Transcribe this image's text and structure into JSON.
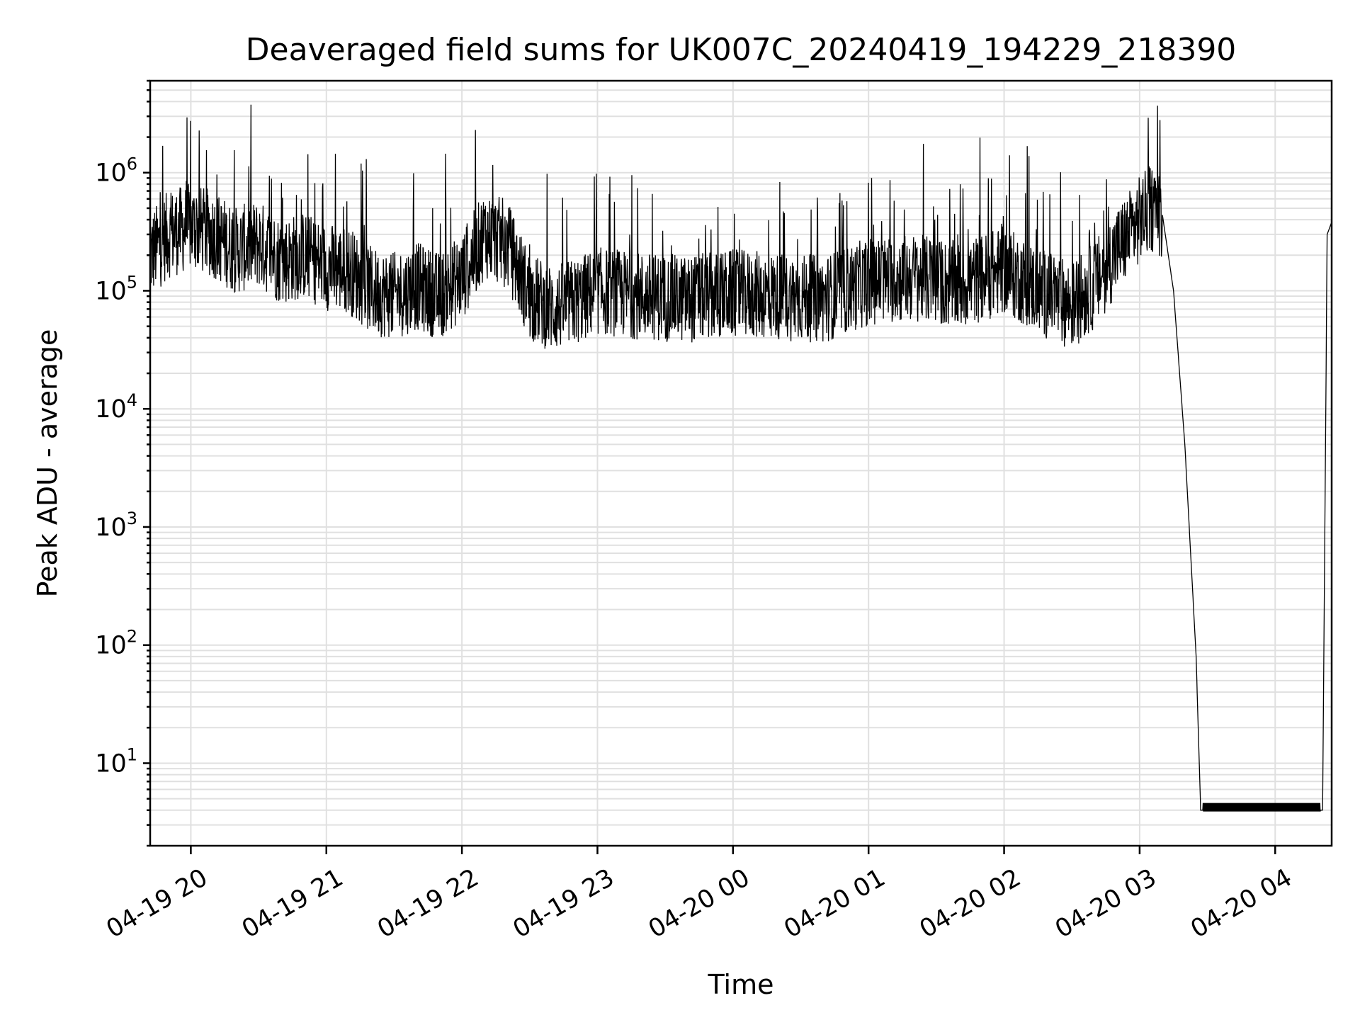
{
  "chart_data": {
    "type": "line",
    "title": "Deaveraged field sums for UK007C_20240419_194229_218390",
    "xlabel": "Time",
    "ylabel": "Peak ADU - average",
    "yscale": "log",
    "grid": true,
    "line_color": "#000000",
    "grid_color": "#e0e0e0",
    "xlim": [
      "2024-04-19 19:42",
      "2024-04-20 04:25"
    ],
    "ylim": [
      2,
      6000000
    ],
    "xticks": [
      {
        "value": "2024-04-19 20:00",
        "label": "04-19 20"
      },
      {
        "value": "2024-04-19 21:00",
        "label": "04-19 21"
      },
      {
        "value": "2024-04-19 22:00",
        "label": "04-19 22"
      },
      {
        "value": "2024-04-19 23:00",
        "label": "04-19 23"
      },
      {
        "value": "2024-04-20 00:00",
        "label": "04-20 00"
      },
      {
        "value": "2024-04-20 01:00",
        "label": "04-20 01"
      },
      {
        "value": "2024-04-20 02:00",
        "label": "04-20 02"
      },
      {
        "value": "2024-04-20 03:00",
        "label": "04-20 03"
      },
      {
        "value": "2024-04-20 04:00",
        "label": "04-20 04"
      }
    ],
    "yticks": [
      {
        "value": 10,
        "base": "10",
        "exp": "1"
      },
      {
        "value": 100,
        "base": "10",
        "exp": "2"
      },
      {
        "value": 1000,
        "base": "10",
        "exp": "3"
      },
      {
        "value": 10000,
        "base": "10",
        "exp": "4"
      },
      {
        "value": 100000,
        "base": "10",
        "exp": "5"
      },
      {
        "value": 1000000,
        "base": "10",
        "exp": "6"
      }
    ],
    "series": [
      {
        "x": [
          "2024-04-19 19:42",
          "2024-04-19 19:50",
          "2024-04-19 20:00",
          "2024-04-19 20:10",
          "2024-04-19 20:20",
          "2024-04-19 20:30",
          "2024-04-19 20:40",
          "2024-04-19 20:50",
          "2024-04-19 21:00",
          "2024-04-19 21:10",
          "2024-04-19 21:20",
          "2024-04-19 21:30",
          "2024-04-19 21:40",
          "2024-04-19 21:50",
          "2024-04-19 22:00",
          "2024-04-19 22:10",
          "2024-04-19 22:20",
          "2024-04-19 22:30",
          "2024-04-19 22:40",
          "2024-04-19 22:50",
          "2024-04-19 23:00",
          "2024-04-19 23:20",
          "2024-04-19 23:40",
          "2024-04-20 00:00",
          "2024-04-20 00:20",
          "2024-04-20 00:40",
          "2024-04-20 01:00",
          "2024-04-20 01:20",
          "2024-04-20 01:40",
          "2024-04-20 02:00",
          "2024-04-20 02:20",
          "2024-04-20 02:30",
          "2024-04-20 02:40",
          "2024-04-20 02:50",
          "2024-04-20 03:00",
          "2024-04-20 03:05",
          "2024-04-20 03:10",
          "2024-04-20 03:15",
          "2024-04-20 03:20",
          "2024-04-20 03:25",
          "2024-04-20 03:27",
          "2024-04-20 03:28",
          "2024-04-20 04:20",
          "2024-04-20 04:21",
          "2024-04-20 04:23",
          "2024-04-20 04:25"
        ],
        "y": [
          200000,
          300000,
          350000,
          300000,
          220000,
          250000,
          180000,
          200000,
          160000,
          150000,
          100000,
          90000,
          110000,
          90000,
          130000,
          300000,
          250000,
          90000,
          70000,
          80000,
          100000,
          90000,
          85000,
          95000,
          90000,
          85000,
          120000,
          130000,
          110000,
          150000,
          90000,
          75000,
          110000,
          220000,
          400000,
          500000,
          450000,
          100000,
          5000,
          80,
          4,
          4,
          4,
          4,
          300000,
          380000
        ]
      }
    ]
  }
}
